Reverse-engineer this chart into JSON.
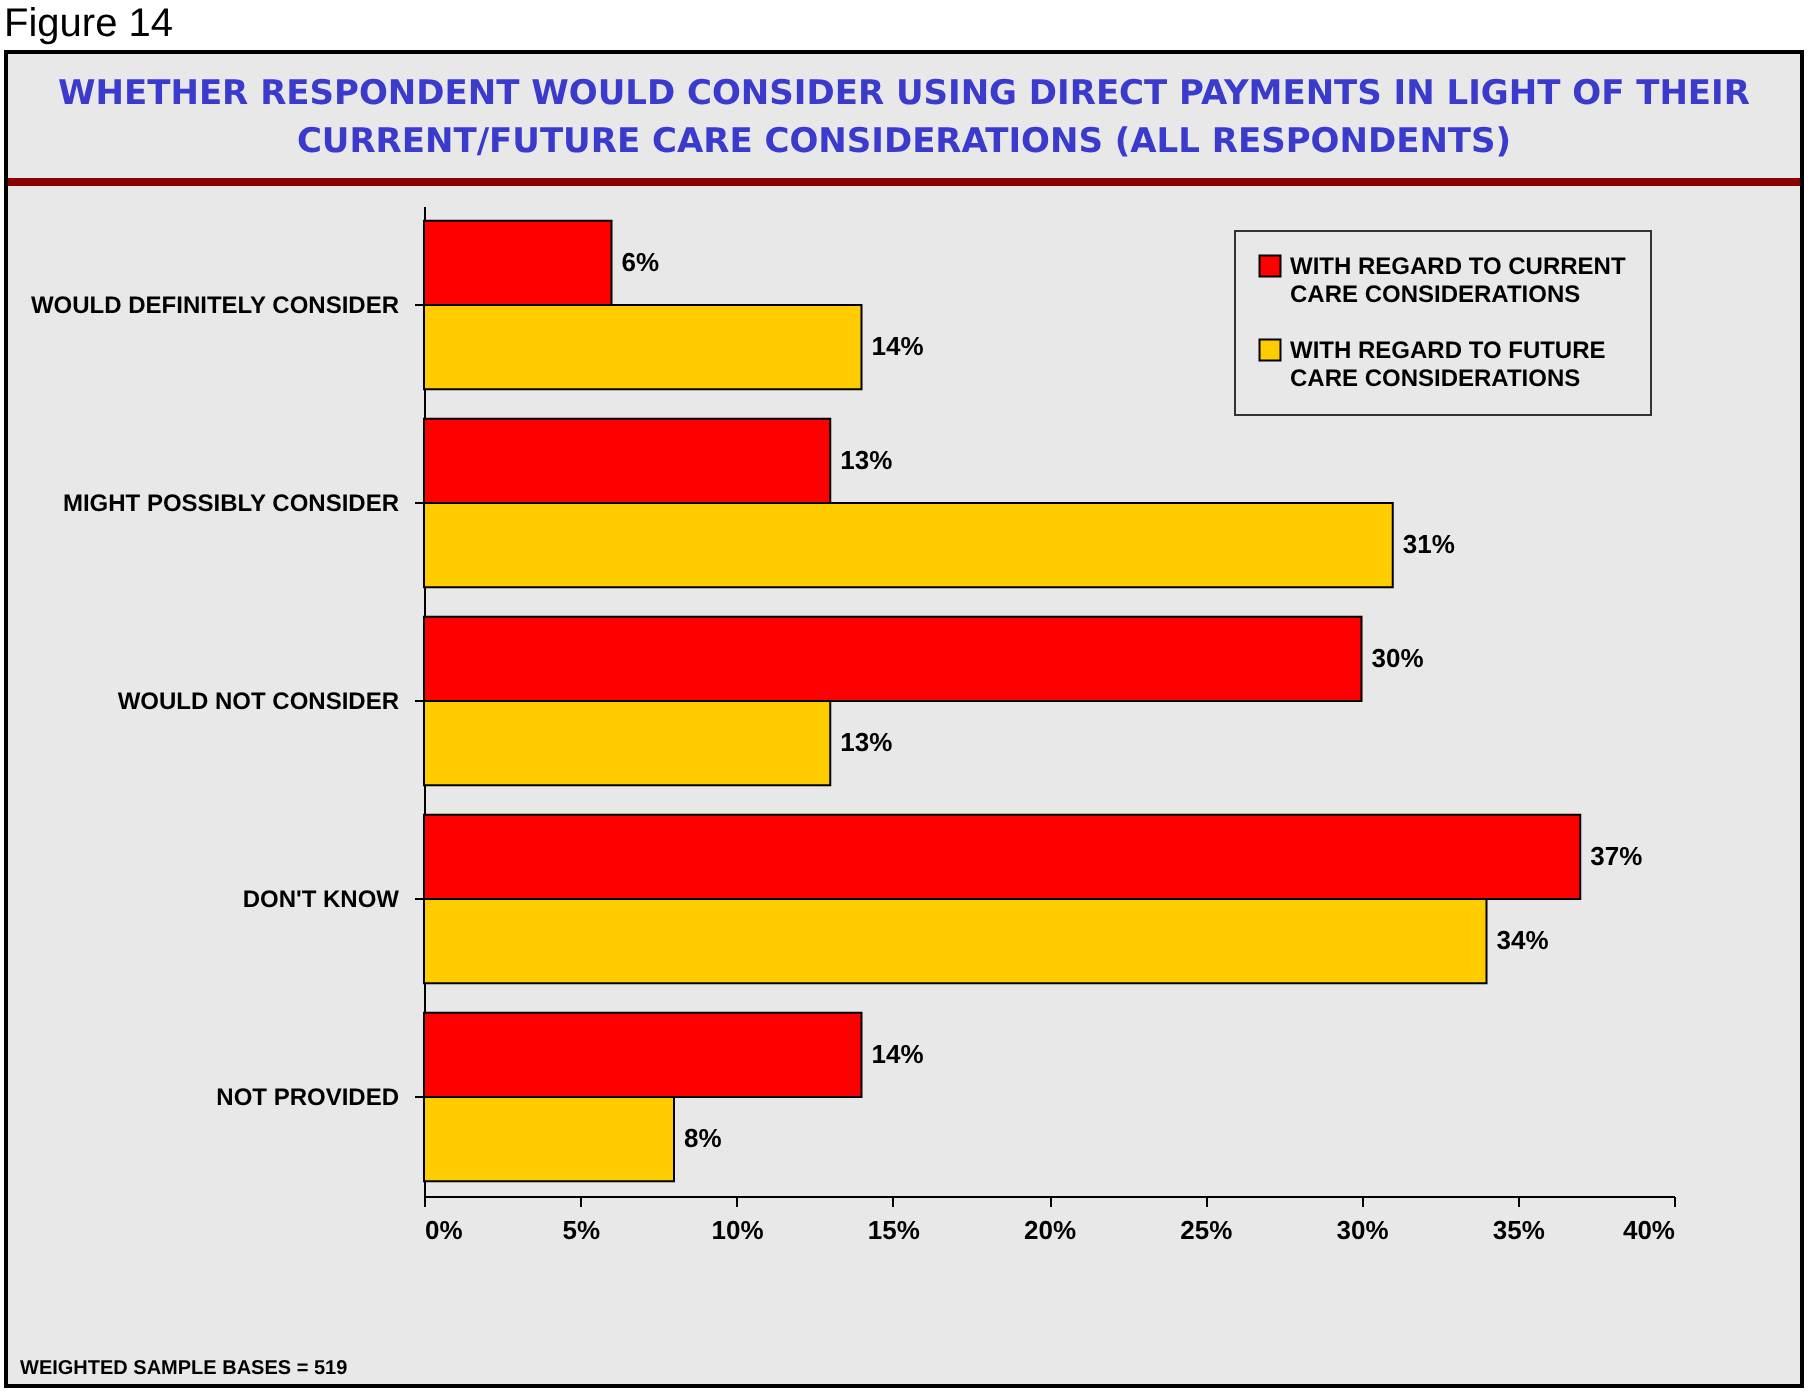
{
  "chart_data": {
    "type": "bar",
    "orientation": "horizontal",
    "title": "WHETHER RESPONDENT WOULD CONSIDER USING DIRECT PAYMENTS IN LIGHT OF THEIR CURRENT/FUTURE CARE CONSIDERATIONS (ALL RESPONDENTS)",
    "categories": [
      "WOULD DEFINITELY CONSIDER",
      "MIGHT POSSIBLY CONSIDER",
      "WOULD NOT CONSIDER",
      "DON'T KNOW",
      "NOT PROVIDED"
    ],
    "series": [
      {
        "name": "WITH REGARD TO CURRENT CARE CONSIDERATIONS",
        "color": "#ff0000",
        "values": [
          6,
          13,
          30,
          37,
          14
        ],
        "value_labels": [
          "6%",
          "13%",
          "30%",
          "37%",
          "14%"
        ]
      },
      {
        "name": "WITH REGARD TO FUTURE CARE CONSIDERATIONS",
        "color": "#ffcc00",
        "values": [
          14,
          31,
          13,
          34,
          8
        ],
        "value_labels": [
          "14%",
          "31%",
          "13%",
          "34%",
          "8%"
        ]
      }
    ],
    "xlim": [
      0,
      40
    ],
    "xticks": [
      {
        "value": 0,
        "label": "0%"
      },
      {
        "value": 5,
        "label": "5%"
      },
      {
        "value": 10,
        "label": "10%"
      },
      {
        "value": 15,
        "label": "15%"
      },
      {
        "value": 20,
        "label": "20%"
      },
      {
        "value": 25,
        "label": "25%"
      },
      {
        "value": 30,
        "label": "30%"
      },
      {
        "value": 35,
        "label": "35%"
      },
      {
        "value": 40,
        "label": "40%"
      }
    ],
    "grid": false,
    "legend": "top right",
    "annotations": [
      "Figure 14",
      "WEIGHTED SAMPLE BASES = 519"
    ]
  }
}
